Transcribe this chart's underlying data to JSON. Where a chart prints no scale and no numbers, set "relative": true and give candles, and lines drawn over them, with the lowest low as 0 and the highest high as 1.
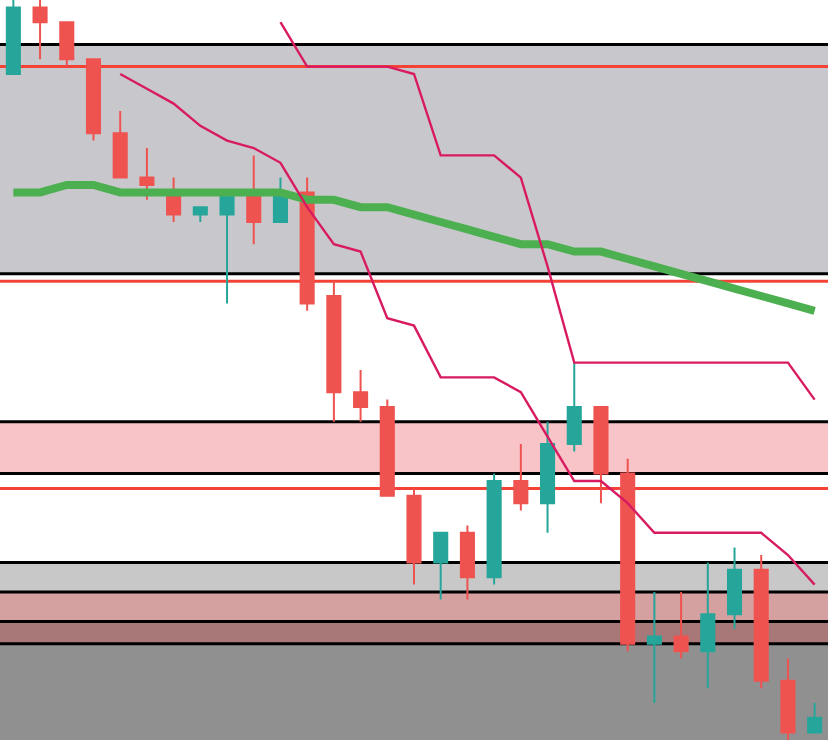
{
  "chart_data": {
    "type": "candlestick",
    "relative": true,
    "legend": false,
    "categories": [
      null,
      null,
      null,
      null,
      null,
      null,
      null,
      null,
      null,
      null,
      null,
      null,
      null,
      null,
      null,
      null,
      null,
      null,
      null,
      null,
      null,
      null,
      null,
      null,
      null,
      null,
      null,
      null,
      null,
      null,
      null
    ],
    "ohlc": [
      [
        0.9,
        1.0,
        0.9,
        0.99
      ],
      [
        0.99,
        1.0,
        0.92,
        0.97
      ],
      [
        0.97,
        0.97,
        0.91,
        0.92
      ],
      [
        0.92,
        0.92,
        0.81,
        0.82
      ],
      [
        0.82,
        0.85,
        0.76,
        0.76
      ],
      [
        0.76,
        0.8,
        0.73,
        0.75
      ],
      [
        0.74,
        0.76,
        0.7,
        0.71
      ],
      [
        0.71,
        0.72,
        0.7,
        0.72
      ],
      [
        0.71,
        0.74,
        0.59,
        0.74
      ],
      [
        0.74,
        0.79,
        0.67,
        0.7
      ],
      [
        0.7,
        0.76,
        0.7,
        0.74
      ],
      [
        0.74,
        0.76,
        0.58,
        0.59
      ],
      [
        0.6,
        0.62,
        0.43,
        0.47
      ],
      [
        0.47,
        0.5,
        0.43,
        0.45
      ],
      [
        0.45,
        0.46,
        0.33,
        0.33
      ],
      [
        0.33,
        0.34,
        0.21,
        0.24
      ],
      [
        0.24,
        0.28,
        0.19,
        0.28
      ],
      [
        0.28,
        0.29,
        0.19,
        0.22
      ],
      [
        0.22,
        0.36,
        0.21,
        0.35
      ],
      [
        0.35,
        0.4,
        0.31,
        0.32
      ],
      [
        0.32,
        0.43,
        0.28,
        0.4
      ],
      [
        0.4,
        0.51,
        0.39,
        0.45
      ],
      [
        0.45,
        0.45,
        0.32,
        0.36
      ],
      [
        0.36,
        0.38,
        0.12,
        0.13
      ],
      [
        0.13,
        0.2,
        0.05,
        0.14
      ],
      [
        0.14,
        0.2,
        0.11,
        0.12
      ],
      [
        0.12,
        0.24,
        0.07,
        0.17
      ],
      [
        0.17,
        0.26,
        0.15,
        0.23
      ],
      [
        0.23,
        0.25,
        0.07,
        0.08
      ],
      [
        0.08,
        0.11,
        0.0,
        0.01
      ],
      [
        0.01,
        0.05,
        0.01,
        0.03
      ]
    ],
    "colors": [
      "#26a69a",
      "#ef5350",
      "#ef5350",
      "#ef5350",
      "#ef5350",
      "#ef5350",
      "#ef5350",
      "#26a69a",
      "#26a69a",
      "#ef5350",
      "#26a69a",
      "#ef5350",
      "#ef5350",
      "#ef5350",
      "#ef5350",
      "#ef5350",
      "#26a69a",
      "#ef5350",
      "#26a69a",
      "#ef5350",
      "#26a69a",
      "#26a69a",
      "#ef5350",
      "#ef5350",
      "#26a69a",
      "#ef5350",
      "#26a69a",
      "#26a69a",
      "#ef5350",
      "#ef5350",
      "#26a69a"
    ],
    "series": [
      {
        "type": "line",
        "color": "#4caf50",
        "values": [
          0.74,
          0.74,
          0.75,
          0.75,
          0.74,
          0.74,
          0.74,
          0.74,
          0.74,
          0.74,
          0.74,
          0.73,
          0.73,
          0.72,
          0.72,
          0.71,
          0.7,
          0.69,
          0.68,
          0.67,
          0.67,
          0.66,
          0.66,
          0.65,
          0.64,
          0.63,
          0.62,
          0.61,
          0.6,
          0.59,
          0.58
        ]
      },
      {
        "type": "line",
        "color": "#d81b60",
        "values": [
          null,
          null,
          null,
          null,
          null,
          null,
          null,
          null,
          null,
          null,
          0.97,
          0.91,
          0.91,
          0.91,
          0.91,
          0.9,
          0.79,
          0.79,
          0.79,
          0.76,
          0.64,
          0.51,
          0.51,
          0.51,
          0.51,
          0.51,
          0.51,
          0.51,
          0.51,
          0.51,
          0.46
        ]
      },
      {
        "type": "line",
        "color": "#d81b60",
        "values": [
          null,
          null,
          null,
          null,
          0.9,
          0.88,
          0.86,
          0.83,
          0.81,
          0.8,
          0.78,
          0.72,
          0.67,
          0.66,
          0.57,
          0.56,
          0.49,
          0.49,
          0.49,
          0.47,
          0.41,
          0.35,
          0.35,
          0.32,
          0.28,
          0.28,
          0.28,
          0.28,
          0.28,
          0.25,
          0.21
        ]
      }
    ],
    "bands": [
      {
        "axis": "y",
        "from": 0.63,
        "to": 0.94,
        "color": "#c8c8cc"
      },
      {
        "axis": "y",
        "from": 0.36,
        "to": 0.43,
        "color": "#f9c4c8"
      },
      {
        "axis": "y",
        "from": 0.2,
        "to": 0.24,
        "color": "#c8c8c8"
      },
      {
        "axis": "y",
        "from": 0.16,
        "to": 0.2,
        "color": "#d4a0a0"
      },
      {
        "axis": "y",
        "from": 0.13,
        "to": 0.16,
        "color": "#a87878"
      },
      {
        "axis": "y",
        "from": 0.0,
        "to": 0.13,
        "color": "#909090"
      }
    ],
    "ref_lines": [
      {
        "axis": "y",
        "value": 0.94,
        "color": "#000000"
      },
      {
        "axis": "y",
        "value": 0.91,
        "color": "#f44336"
      },
      {
        "axis": "y",
        "value": 0.63,
        "color": "#000000"
      },
      {
        "axis": "y",
        "value": 0.62,
        "color": "#f44336"
      },
      {
        "axis": "y",
        "value": 0.43,
        "color": "#000000"
      },
      {
        "axis": "y",
        "value": 0.36,
        "color": "#000000"
      },
      {
        "axis": "y",
        "value": 0.34,
        "color": "#f44336"
      },
      {
        "axis": "y",
        "value": 0.24,
        "color": "#000000"
      },
      {
        "axis": "y",
        "value": 0.2,
        "color": "#000000"
      },
      {
        "axis": "y",
        "value": 0.16,
        "color": "#000000"
      },
      {
        "axis": "y",
        "value": 0.13,
        "color": "#000000"
      }
    ]
  }
}
